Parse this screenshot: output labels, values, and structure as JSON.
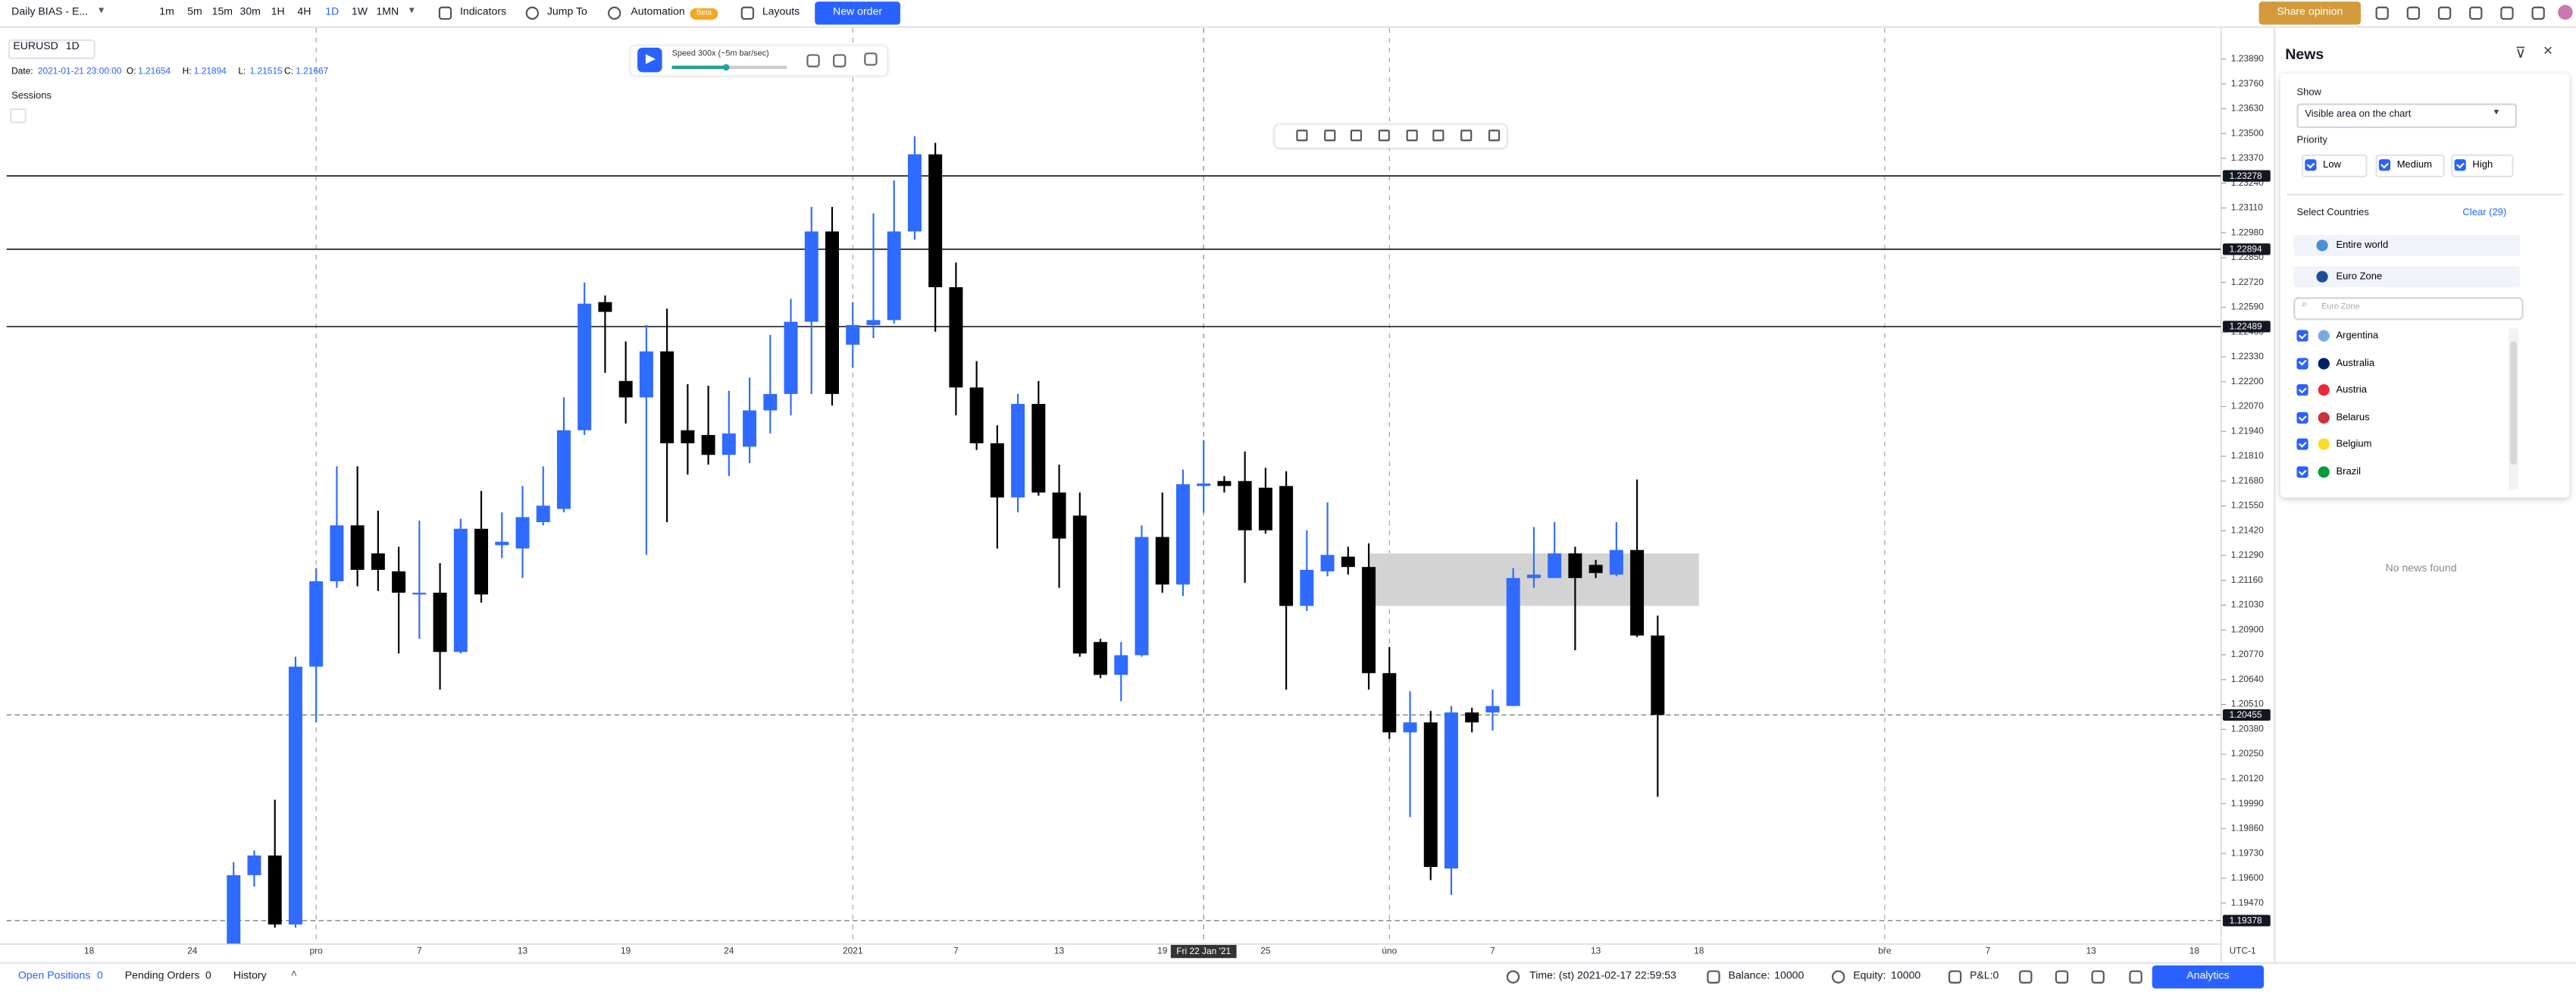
{
  "toolbar": {
    "layout": "Daily BIAS - E...",
    "timeframes": [
      "1m",
      "5m",
      "15m",
      "30m",
      "1H",
      "4H",
      "1D",
      "1W",
      "1MN"
    ],
    "active_timeframe": 6,
    "buttons": [
      "Indicators",
      "Jump To",
      "Automation",
      "Layouts"
    ],
    "beta_badge": "Beta",
    "new_order": "New order",
    "share_opinion": "Share opinion"
  },
  "chart_header": {
    "symbol": "EURUSD",
    "interval": "1D",
    "date_label": "Date:",
    "date": "2021-01-21 23:00:00",
    "ohlc": [
      {
        "label": "O:",
        "value": 1.21654
      },
      {
        "label": "H:",
        "value": 1.21894
      },
      {
        "label": "L:",
        "value": 1.21515
      },
      {
        "label": "C:",
        "value": 1.21667
      }
    ],
    "sessions": "Sessions"
  },
  "replay": {
    "speed": "Speed 300x (~5m bar/sec)"
  },
  "chart_data": {
    "type": "candlestick",
    "up_color": "#2f6bff",
    "down_color": "#000000",
    "xlim": [
      -11,
      96.3
    ],
    "ylim": [
      1.19255,
      1.2401
    ],
    "open": [
      1.19255,
      1.19616,
      1.19719,
      1.19358,
      1.20708,
      1.21155,
      1.21448,
      1.21301,
      1.21207,
      1.21086,
      1.21095,
      1.20785,
      1.2143,
      1.21344,
      1.21327,
      1.21465,
      1.21534,
      1.21946,
      1.22617,
      1.22204,
      1.22118,
      1.22359,
      1.21946,
      1.21921,
      1.21817,
      1.2186,
      1.2205,
      1.22136,
      1.22514,
      1.22987,
      1.22394,
      1.22497,
      1.22523,
      1.22987,
      1.23391,
      1.22695,
      1.2217,
      1.21878,
      1.21594,
      1.22084,
      1.2162,
      1.21499,
      1.20837,
      1.20665,
      1.20768,
      1.21387,
      1.21138,
      1.21654,
      1.2168,
      1.2168,
      1.21645,
      1.21654,
      1.21026,
      1.21207,
      1.21284,
      1.2123,
      1.20674,
      1.20364,
      1.20416,
      1.19651,
      1.20468,
      1.20468,
      1.20502,
      1.21172,
      1.21172,
      1.21301,
      1.21241,
      1.2119,
      1.21319,
      1.20871
    ],
    "high": [
      1.19685,
      1.19745,
      1.20011,
      1.2076,
      1.21224,
      1.21757,
      1.21757,
      1.21525,
      1.21336,
      1.21473,
      1.2125,
      1.21482,
      1.21628,
      1.21516,
      1.21654,
      1.21757,
      1.22118,
      1.2272,
      1.22652,
      1.22411,
      1.22497,
      1.22583,
      1.22187,
      1.22179,
      1.22153,
      1.22222,
      1.22445,
      1.22634,
      1.23116,
      1.23116,
      1.22617,
      1.23082,
      1.23254,
      1.23486,
      1.23451,
      1.22824,
      1.22308,
      1.21972,
      1.22136,
      1.22204,
      1.21766,
      1.2162,
      1.20854,
      1.20837,
      1.21448,
      1.2162,
      1.2174,
      1.21894,
      1.21706,
      1.21835,
      1.21749,
      1.21731,
      1.21422,
      1.21568,
      1.21336,
      1.21353,
      1.20811,
      1.20579,
      1.20476,
      1.20502,
      1.20493,
      1.20588,
      1.21224,
      1.21439,
      1.21465,
      1.21336,
      1.21267,
      1.21465,
      1.21688,
      1.20975
    ],
    "low": [
      1.19255,
      1.19556,
      1.19341,
      1.19341,
      1.20416,
      1.21121,
      1.21129,
      1.21104,
      1.20777,
      1.20854,
      1.20588,
      1.20777,
      1.21043,
      1.21276,
      1.21172,
      1.21448,
      1.21516,
      1.21921,
      1.22247,
      1.21981,
      1.21293,
      1.21465,
      1.21714,
      1.21766,
      1.21706,
      1.21774,
      1.21929,
      1.22024,
      1.22136,
      1.22075,
      1.22273,
      1.22428,
      1.22505,
      1.22944,
      1.22462,
      1.22024,
      1.21843,
      1.21327,
      1.21516,
      1.21603,
      1.21121,
      1.2076,
      1.20648,
      1.20527,
      1.2076,
      1.21095,
      1.21078,
      1.21515,
      1.2162,
      1.21147,
      1.21405,
      1.20588,
      1.21,
      1.21181,
      1.2119,
      1.20588,
      1.2033,
      1.1992,
      1.1959,
      1.19513,
      1.20364,
      1.20373,
      1.20502,
      1.21121,
      1.2119,
      1.20794,
      1.21172,
      1.21181,
      1.20863,
      1.20026
    ],
    "close": [
      1.19616,
      1.19719,
      1.19358,
      1.20708,
      1.21155,
      1.21448,
      1.21215,
      1.21215,
      1.21095,
      1.21095,
      1.20785,
      1.2143,
      1.21086,
      1.21362,
      1.21491,
      1.21551,
      1.21946,
      1.22609,
      1.22566,
      1.22118,
      1.22359,
      1.21878,
      1.21878,
      1.21817,
      1.21929,
      1.2205,
      1.22136,
      1.22514,
      1.22987,
      1.22136,
      1.22497,
      1.22523,
      1.22987,
      1.23391,
      1.22695,
      1.2217,
      1.21878,
      1.21594,
      1.22084,
      1.2162,
      1.21379,
      1.20777,
      1.20665,
      1.20768,
      1.21387,
      1.21138,
      1.21663,
      1.21667,
      1.21654,
      1.21422,
      1.21422,
      1.21026,
      1.21215,
      1.21293,
      1.2123,
      1.20674,
      1.20364,
      1.20416,
      1.19659,
      1.20468,
      1.20416,
      1.20502,
      1.21172,
      1.2119,
      1.21301,
      1.21172,
      1.21198,
      1.21319,
      1.20871,
      1.20455
    ],
    "xticks": [
      {
        "value": -7,
        "label": "18"
      },
      {
        "value": -2,
        "label": "24"
      },
      {
        "value": 4,
        "label": "pro",
        "separator": true
      },
      {
        "value": 9,
        "label": "7"
      },
      {
        "value": 14,
        "label": "13"
      },
      {
        "value": 19,
        "label": "19"
      },
      {
        "value": 24,
        "label": "24"
      },
      {
        "value": 30,
        "label": "2021",
        "separator": true
      },
      {
        "value": 35,
        "label": "7"
      },
      {
        "value": 40,
        "label": "13"
      },
      {
        "value": 45,
        "label": "19"
      },
      {
        "value": 50,
        "label": "25"
      },
      {
        "value": 56,
        "label": "úno",
        "separator": true
      },
      {
        "value": 61,
        "label": "7"
      },
      {
        "value": 66,
        "label": "13"
      },
      {
        "value": 71,
        "label": "18"
      },
      {
        "value": 80,
        "label": "bře",
        "separator": true
      },
      {
        "value": 85,
        "label": "7"
      },
      {
        "value": 90,
        "label": "13"
      },
      {
        "value": 95,
        "label": "18"
      }
    ],
    "yticks": [
      {
        "value": 1.2389,
        "label": "1.23890"
      },
      {
        "value": 1.2376,
        "label": "1.23760"
      },
      {
        "value": 1.2363,
        "label": "1.23630"
      },
      {
        "value": 1.235,
        "label": "1.23500"
      },
      {
        "value": 1.2337,
        "label": "1.23370"
      },
      {
        "value": 1.2324,
        "label": "1.23240"
      },
      {
        "value": 1.2311,
        "label": "1.23110"
      },
      {
        "value": 1.2298,
        "label": "1.22980"
      },
      {
        "value": 1.2285,
        "label": "1.22850"
      },
      {
        "value": 1.2272,
        "label": "1.22720"
      },
      {
        "value": 1.2259,
        "label": "1.22590"
      },
      {
        "value": 1.2246,
        "label": "1.22460"
      },
      {
        "value": 1.2233,
        "label": "1.22330"
      },
      {
        "value": 1.222,
        "label": "1.22200"
      },
      {
        "value": 1.2207,
        "label": "1.22070"
      },
      {
        "value": 1.2194,
        "label": "1.21940"
      },
      {
        "value": 1.2181,
        "label": "1.21810"
      },
      {
        "value": 1.2168,
        "label": "1.21680"
      },
      {
        "value": 1.2155,
        "label": "1.21550"
      },
      {
        "value": 1.2142,
        "label": "1.21420"
      },
      {
        "value": 1.2129,
        "label": "1.21290"
      },
      {
        "value": 1.2116,
        "label": "1.21160"
      },
      {
        "value": 1.2103,
        "label": "1.21030"
      },
      {
        "value": 1.209,
        "label": "1.20900"
      },
      {
        "value": 1.2077,
        "label": "1.20770"
      },
      {
        "value": 1.2064,
        "label": "1.20640"
      },
      {
        "value": 1.2051,
        "label": "1.20510"
      },
      {
        "value": 1.2038,
        "label": "1.20380"
      },
      {
        "value": 1.2025,
        "label": "1.20250"
      },
      {
        "value": 1.2012,
        "label": "1.20120"
      },
      {
        "value": 1.1999,
        "label": "1.19990"
      },
      {
        "value": 1.1986,
        "label": "1.19860"
      },
      {
        "value": 1.1973,
        "label": "1.19730"
      },
      {
        "value": 1.196,
        "label": "1.19600"
      },
      {
        "value": 1.1947,
        "label": "1.19470"
      }
    ],
    "price_lines": [
      {
        "value": 1.23278,
        "style": "solid"
      },
      {
        "value": 1.22894,
        "style": "solid"
      },
      {
        "value": 1.22489,
        "style": "solid"
      },
      {
        "value": 1.20455,
        "style": "dashed"
      },
      {
        "value": 1.19378,
        "style": "dashed"
      }
    ],
    "zone": {
      "from": 55,
      "to": 71,
      "top": 1.21301,
      "bottom": 1.21026,
      "color": "#d3d3d3"
    },
    "crosshair": {
      "x": 47,
      "label": "Fri 22 Jan '21"
    },
    "timezone": "UTC-1"
  },
  "news_panel": {
    "title": "News",
    "show_label": "Show",
    "show_value": "Visible area on the chart",
    "priority_label": "Priority",
    "priorities": [
      "Low",
      "Medium",
      "High"
    ],
    "countries_label": "Select Countries",
    "clear": "Clear (29)",
    "regions": [
      "Entire world",
      "Euro Zone"
    ],
    "search_placeholder": "Euro Zone",
    "countries": [
      "Argentina",
      "Australia",
      "Austria",
      "Belarus",
      "Belgium",
      "Brazil"
    ],
    "empty": "No news found"
  },
  "status_bar": {
    "open_positions": "Open Positions",
    "open_positions_count": 0,
    "pending_orders": "Pending Orders",
    "pending_orders_count": 0,
    "history": "History",
    "time": "Time: (st) 2021-02-17 22:59:53",
    "balance_label": "Balance:",
    "balance": 10000,
    "equity_label": "Equity:",
    "equity": 10000,
    "pnl_label": "P&L:",
    "pnl": 0,
    "analytics": "Analytics"
  }
}
